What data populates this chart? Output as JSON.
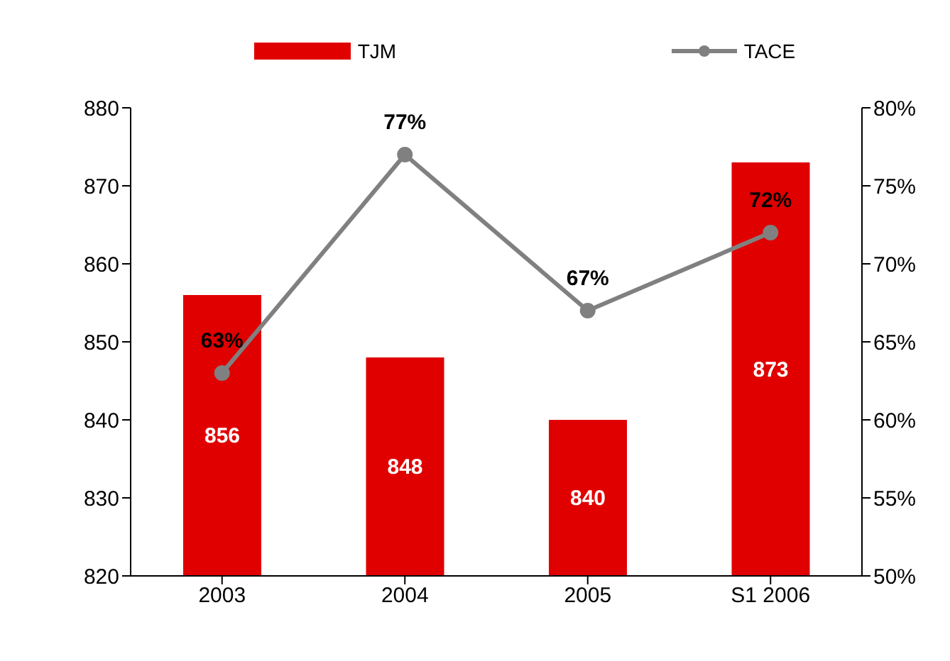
{
  "chart_data": {
    "type": "bar",
    "categories": [
      "2003",
      "2004",
      "2005",
      "S1 2006"
    ],
    "series": [
      {
        "name": "TJM",
        "color": "#e00000",
        "values": [
          856,
          848,
          840,
          873
        ],
        "value_labels": [
          "856",
          "848",
          "840",
          "873"
        ]
      },
      {
        "name": "TACE",
        "type": "line",
        "axis": "y2",
        "color": "#808080",
        "values": [
          63,
          77,
          67,
          72
        ],
        "value_labels": [
          "63%",
          "77%",
          "67%",
          "72%"
        ]
      }
    ],
    "ylim": [
      820,
      880
    ],
    "yticks": [
      820,
      830,
      840,
      850,
      860,
      870,
      880
    ],
    "y2lim": [
      50,
      80
    ],
    "y2ticks": [
      {
        "value": 50,
        "label": "50%"
      },
      {
        "value": 55,
        "label": "55%"
      },
      {
        "value": 60,
        "label": "60%"
      },
      {
        "value": 65,
        "label": "65%"
      },
      {
        "value": 70,
        "label": "70%"
      },
      {
        "value": 75,
        "label": "75%"
      },
      {
        "value": 80,
        "label": "80%"
      }
    ],
    "legend": "top",
    "grid": false,
    "marker": "circle",
    "line_style": "solid"
  }
}
